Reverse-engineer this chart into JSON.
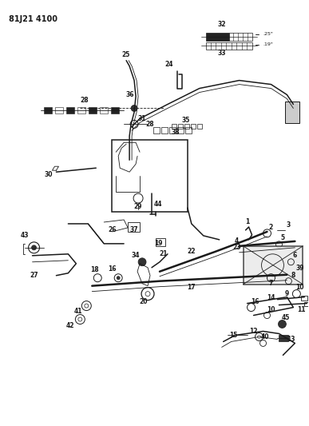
{
  "title": "81J21 4100",
  "background_color": "#ffffff",
  "line_color": "#1a1a1a",
  "fig_width": 3.87,
  "fig_height": 5.33,
  "dpi": 100,
  "fs_label": 5.5,
  "fs_title": 7.0,
  "fs_small": 4.5,
  "lw_main": 1.1,
  "lw_thin": 0.6,
  "lw_thick": 1.8
}
